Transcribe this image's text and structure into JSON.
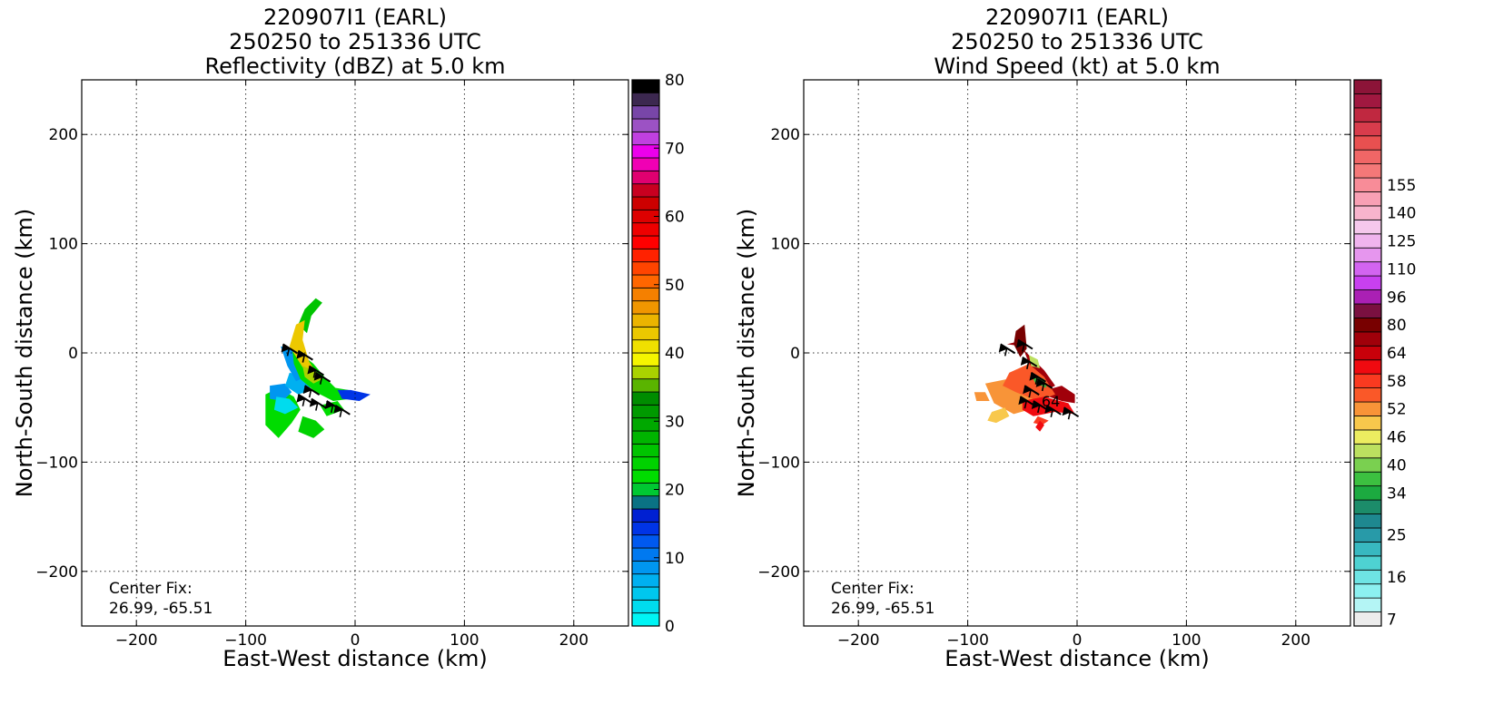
{
  "chart_data": [
    {
      "type": "heatmap",
      "title_lines": [
        "220907I1 (EARL)",
        "250250 to 251336 UTC",
        "Reflectivity (dBZ) at 5.0 km"
      ],
      "xlabel": "East-West distance (km)",
      "ylabel": "North-South distance (km)",
      "xlim": [
        -250,
        250
      ],
      "ylim": [
        -250,
        250
      ],
      "xticks": [
        -200,
        -100,
        0,
        100,
        200
      ],
      "yticks": [
        -200,
        -100,
        0,
        100,
        200
      ],
      "xtick_labels": [
        "−200",
        "−100",
        "0",
        "100",
        "200"
      ],
      "ytick_labels": [
        "−200",
        "−100",
        "0",
        "100",
        "200"
      ],
      "grid": true,
      "annotation": {
        "line1": "Center Fix:",
        "line2": "26.99, -65.51"
      },
      "colorbar": {
        "min": 0,
        "max": 80,
        "tick_values": [
          0,
          10,
          20,
          30,
          40,
          50,
          60,
          70,
          80
        ],
        "tick_labels": [
          "0",
          "10",
          "20",
          "30",
          "40",
          "50",
          "60",
          "70",
          "80"
        ],
        "colors": [
          "#00f5f5",
          "#00dcee",
          "#00c7ee",
          "#00b0f0",
          "#0096f0",
          "#0079f0",
          "#0059f0",
          "#0034e6",
          "#0020d2",
          "#0a7284",
          "#00c832",
          "#00dc00",
          "#00d200",
          "#00c400",
          "#00b400",
          "#00a800",
          "#009a00",
          "#008c00",
          "#5ab400",
          "#aad200",
          "#f5f500",
          "#f0e000",
          "#ecc800",
          "#ebb400",
          "#f09600",
          "#f58000",
          "#ff6600",
          "#ff4400",
          "#ff2200",
          "#ff0000",
          "#ee0000",
          "#dd0000",
          "#cc0000",
          "#c80020",
          "#e00070",
          "#f000b4",
          "#ec00ec",
          "#c040e0",
          "#9c52c4",
          "#7846a8",
          "#3c2850",
          "#000000"
        ]
      },
      "data_regions": [
        {
          "value": 22,
          "points": [
            [
              -82,
              -38
            ],
            [
              -70,
              -32
            ],
            [
              -56,
              -40
            ],
            [
              -50,
              -52
            ],
            [
              -58,
              -64
            ],
            [
              -70,
              -78
            ],
            [
              -82,
              -66
            ]
          ]
        },
        {
          "value": 24,
          "points": [
            [
              -48,
              -58
            ],
            [
              -36,
              -62
            ],
            [
              -28,
              -70
            ],
            [
              -38,
              -78
            ],
            [
              -52,
              -72
            ]
          ]
        },
        {
          "value": 22,
          "points": [
            [
              -32,
              -48
            ],
            [
              -16,
              -44
            ],
            [
              -10,
              -52
            ],
            [
              -26,
              -58
            ]
          ]
        },
        {
          "value": 8,
          "points": [
            [
              -78,
              -30
            ],
            [
              -64,
              -28
            ],
            [
              -58,
              -36
            ],
            [
              -66,
              -44
            ],
            [
              -78,
              -42
            ]
          ]
        },
        {
          "value": 2,
          "points": [
            [
              -72,
              -40
            ],
            [
              -60,
              -42
            ],
            [
              -52,
              -50
            ],
            [
              -64,
              -56
            ],
            [
              -74,
              -52
            ]
          ]
        },
        {
          "value": 6,
          "points": [
            [
              -60,
              -18
            ],
            [
              -46,
              -22
            ],
            [
              -40,
              -34
            ],
            [
              -52,
              -38
            ],
            [
              -64,
              -30
            ]
          ]
        },
        {
          "value": 9,
          "points": [
            [
              -68,
              6
            ],
            [
              -58,
              4
            ],
            [
              -48,
              -10
            ],
            [
              -42,
              -20
            ],
            [
              -54,
              -26
            ],
            [
              -62,
              -12
            ]
          ]
        },
        {
          "value": 22,
          "points": [
            [
              -58,
              8
            ],
            [
              -48,
              -2
            ],
            [
              -38,
              -10
            ],
            [
              -28,
              -22
            ],
            [
              -18,
              -32
            ],
            [
              -6,
              -34
            ],
            [
              -4,
              -42
            ],
            [
              -20,
              -44
            ],
            [
              -36,
              -36
            ],
            [
              -50,
              -24
            ],
            [
              -56,
              -10
            ]
          ]
        },
        {
          "value": 25,
          "points": [
            [
              -52,
              26
            ],
            [
              -46,
              40
            ],
            [
              -36,
              50
            ],
            [
              -30,
              46
            ],
            [
              -40,
              34
            ],
            [
              -44,
              18
            ]
          ]
        },
        {
          "value": 14,
          "points": [
            [
              -16,
              -34
            ],
            [
              -4,
              -34
            ],
            [
              14,
              -38
            ],
            [
              4,
              -44
            ],
            [
              -12,
              -42
            ]
          ]
        },
        {
          "value": 42,
          "points": [
            [
              -60,
              6
            ],
            [
              -54,
              26
            ],
            [
              -46,
              30
            ],
            [
              -48,
              12
            ],
            [
              -42,
              -8
            ],
            [
              -34,
              -20
            ],
            [
              -40,
              -26
            ],
            [
              -50,
              -10
            ]
          ]
        },
        {
          "value": 38,
          "points": [
            [
              -48,
              -12
            ],
            [
              -38,
              -16
            ],
            [
              -30,
              -24
            ],
            [
              -38,
              -28
            ],
            [
              -46,
              -22
            ]
          ]
        }
      ],
      "barbs": [
        [
          -66,
          8
        ],
        [
          -52,
          2
        ],
        [
          -42,
          -12
        ],
        [
          -36,
          -18
        ],
        [
          -46,
          -30
        ],
        [
          -52,
          -38
        ],
        [
          -40,
          -42
        ],
        [
          -26,
          -44
        ],
        [
          -18,
          -48
        ]
      ]
    },
    {
      "type": "heatmap",
      "title_lines": [
        "220907I1 (EARL)",
        "250250 to 251336 UTC",
        "Wind Speed (kt) at 5.0 km"
      ],
      "xlabel": "East-West distance (km)",
      "ylabel": "North-South distance (km)",
      "xlim": [
        -250,
        250
      ],
      "ylim": [
        -250,
        250
      ],
      "xticks": [
        -200,
        -100,
        0,
        100,
        200
      ],
      "yticks": [
        -200,
        -100,
        0,
        100,
        200
      ],
      "xtick_labels": [
        "−200",
        "−100",
        "0",
        "100",
        "200"
      ],
      "ytick_labels": [
        "−200",
        "−100",
        "0",
        "100",
        "200"
      ],
      "grid": true,
      "annotation": {
        "line1": "Center Fix:",
        "line2": "26.99, -65.51"
      },
      "contour_label": {
        "text": "64",
        "x": -24,
        "y": -44
      },
      "colorbar": {
        "tick_labels": [
          "7",
          "16",
          "25",
          "34",
          "40",
          "46",
          "52",
          "58",
          "64",
          "80",
          "96",
          "110",
          "125",
          "140",
          "155"
        ],
        "tick_bins": [
          0,
          3,
          6,
          9,
          11,
          13,
          15,
          17,
          19,
          21,
          23,
          25,
          27,
          29,
          31
        ],
        "colors": [
          "#ececec",
          "#b4f5f5",
          "#8cf0f0",
          "#6ee4e4",
          "#4ed2d2",
          "#38b8c0",
          "#289aa8",
          "#1e8890",
          "#1c8c6a",
          "#1caa40",
          "#3cc040",
          "#7ad050",
          "#bce060",
          "#ecec60",
          "#f8c84c",
          "#f89438",
          "#fa5828",
          "#fa3a20",
          "#f00a10",
          "#c8000a",
          "#a0000a",
          "#780000",
          "#7a1040",
          "#aa20b4",
          "#c840f0",
          "#d264f0",
          "#e696ee",
          "#f0b4ee",
          "#f5c8ec",
          "#f8b4cc",
          "#f8a0b4",
          "#f88c98",
          "#f47878",
          "#f06666",
          "#e85050",
          "#d83c4c",
          "#c02840",
          "#a01840",
          "#8c1438"
        ]
      },
      "data_regions": [
        {
          "value": 70,
          "points": [
            [
              -64,
              8
            ],
            [
              -50,
              6
            ],
            [
              -40,
              -20
            ],
            [
              -28,
              -34
            ],
            [
              -20,
              -30
            ],
            [
              -30,
              -16
            ],
            [
              -44,
              -2
            ],
            [
              -56,
              10
            ]
          ]
        },
        {
          "value": 80,
          "points": [
            [
              -56,
              20
            ],
            [
              -48,
              26
            ],
            [
              -46,
              4
            ],
            [
              -52,
              -4
            ],
            [
              -58,
              8
            ]
          ]
        },
        {
          "value": 75,
          "points": [
            [
              -28,
              -34
            ],
            [
              -14,
              -30
            ],
            [
              -2,
              -38
            ],
            [
              -2,
              -46
            ],
            [
              -14,
              -44
            ],
            [
              -26,
              -40
            ]
          ]
        },
        {
          "value": 52,
          "points": [
            [
              -84,
              -28
            ],
            [
              -64,
              -24
            ],
            [
              -40,
              -30
            ],
            [
              -30,
              -40
            ],
            [
              -44,
              -52
            ],
            [
              -58,
              -56
            ],
            [
              -76,
              -46
            ]
          ]
        },
        {
          "value": 56,
          "points": [
            [
              -62,
              -18
            ],
            [
              -44,
              -10
            ],
            [
              -30,
              -22
            ],
            [
              -20,
              -38
            ],
            [
              -36,
              -44
            ],
            [
              -56,
              -36
            ],
            [
              -68,
              -30
            ]
          ]
        },
        {
          "value": 60,
          "points": [
            [
              -50,
              -44
            ],
            [
              -30,
              -40
            ],
            [
              -8,
              -46
            ],
            [
              -2,
              -56
            ],
            [
              -20,
              -54
            ],
            [
              -40,
              -58
            ],
            [
              -50,
              -52
            ]
          ]
        },
        {
          "value": 58,
          "points": [
            [
              -36,
              -58
            ],
            [
              -26,
              -62
            ],
            [
              -32,
              -66
            ],
            [
              -40,
              -64
            ]
          ]
        },
        {
          "value": 60,
          "points": [
            [
              -34,
              -62
            ],
            [
              -30,
              -66
            ],
            [
              -34,
              -72
            ],
            [
              -38,
              -68
            ]
          ]
        },
        {
          "value": 48,
          "points": [
            [
              -78,
              -54
            ],
            [
              -66,
              -50
            ],
            [
              -62,
              -58
            ],
            [
              -74,
              -64
            ],
            [
              -82,
              -62
            ]
          ]
        },
        {
          "value": 44,
          "points": [
            [
              -44,
              -2
            ],
            [
              -36,
              -6
            ],
            [
              -34,
              -14
            ],
            [
              -42,
              -12
            ]
          ]
        },
        {
          "value": 38,
          "points": [
            [
              -42,
              -20
            ],
            [
              -30,
              -24
            ],
            [
              -28,
              -32
            ],
            [
              -38,
              -28
            ]
          ]
        },
        {
          "value": 52,
          "points": [
            [
              -94,
              -36
            ],
            [
              -84,
              -36
            ],
            [
              -80,
              -44
            ],
            [
              -92,
              -44
            ]
          ]
        }
      ],
      "barbs": [
        [
          -70,
          8
        ],
        [
          -54,
          12
        ],
        [
          -50,
          -4
        ],
        [
          -42,
          -18
        ],
        [
          -36,
          -24
        ],
        [
          -48,
          -30
        ],
        [
          -52,
          -40
        ],
        [
          -40,
          -44
        ],
        [
          -28,
          -48
        ],
        [
          -12,
          -50
        ]
      ]
    }
  ]
}
